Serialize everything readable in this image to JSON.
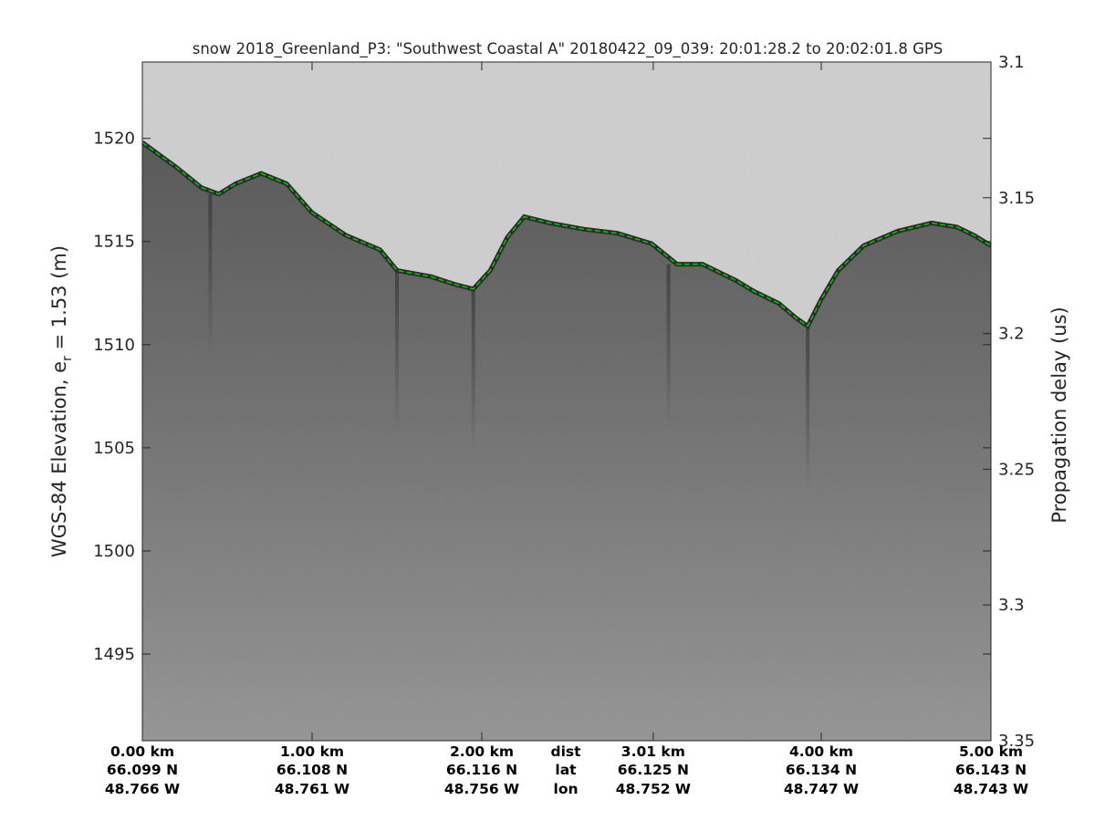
{
  "chart_data": {
    "type": "heatmap",
    "title": "snow 2018_Greenland_P3: \"Southwest Coastal A\"  20180422_09_039: 20:01:28.2 to 20:02:01.8 GPS",
    "ylabel_left": "WGS-84 Elevation, e",
    "ylabel_left_subscript": "r",
    "ylabel_left_suffix": " = 1.53 (m)",
    "ylabel_right": "Propagation delay (us)",
    "ylim_left": [
      1490.8,
      1523.7
    ],
    "yticks_left": [
      1520,
      1515,
      1510,
      1505,
      1500,
      1495
    ],
    "ylim_right": [
      3.1,
      3.35
    ],
    "yticks_right": [
      "3.1",
      "3.15",
      "3.2",
      "3.25",
      "3.3",
      "3.35"
    ],
    "xlim_km": [
      0,
      5.0
    ],
    "x_ticks": [
      {
        "km": 0.0,
        "dist": "0.00 km",
        "lat": "66.099 N",
        "lon": "48.766 W"
      },
      {
        "km": 1.0,
        "dist": "1.00 km",
        "lat": "66.108 N",
        "lon": "48.761 W"
      },
      {
        "km": 2.0,
        "dist": "2.00 km",
        "lat": "66.116 N",
        "lon": "48.756 W"
      },
      {
        "km": 3.01,
        "dist": "3.01 km",
        "lat": "66.125 N",
        "lon": "48.752 W"
      },
      {
        "km": 4.0,
        "dist": "4.00 km",
        "lat": "66.134 N",
        "lon": "48.747 W"
      },
      {
        "km": 5.0,
        "dist": "5.00 km",
        "lat": "66.143 N",
        "lon": "48.743 W"
      }
    ],
    "row_labels": {
      "dist": "dist",
      "lat": "lat",
      "lon": "lon"
    },
    "surface": {
      "line_color": "#00cc00",
      "x_km": [
        0.0,
        0.2,
        0.35,
        0.45,
        0.55,
        0.7,
        0.85,
        1.0,
        1.2,
        1.4,
        1.5,
        1.7,
        1.85,
        1.95,
        2.05,
        2.15,
        2.25,
        2.4,
        2.6,
        2.8,
        3.0,
        3.15,
        3.3,
        3.5,
        3.6,
        3.75,
        3.85,
        3.92,
        4.0,
        4.1,
        4.25,
        4.45,
        4.65,
        4.8,
        4.9,
        5.0
      ],
      "elev_m": [
        1519.8,
        1518.6,
        1517.6,
        1517.3,
        1517.8,
        1518.3,
        1517.8,
        1516.4,
        1515.3,
        1514.6,
        1513.6,
        1513.3,
        1512.9,
        1512.7,
        1513.6,
        1515.2,
        1516.2,
        1515.9,
        1515.6,
        1515.4,
        1514.9,
        1513.9,
        1513.9,
        1513.1,
        1512.6,
        1512.0,
        1511.3,
        1510.9,
        1512.2,
        1513.6,
        1514.8,
        1515.5,
        1515.9,
        1515.7,
        1515.3,
        1514.8
      ]
    },
    "colormap": "gray",
    "air_color": "#d2d2d2",
    "snow_top_color": "#5c5c5c",
    "snow_bottom_color": "#999999"
  }
}
